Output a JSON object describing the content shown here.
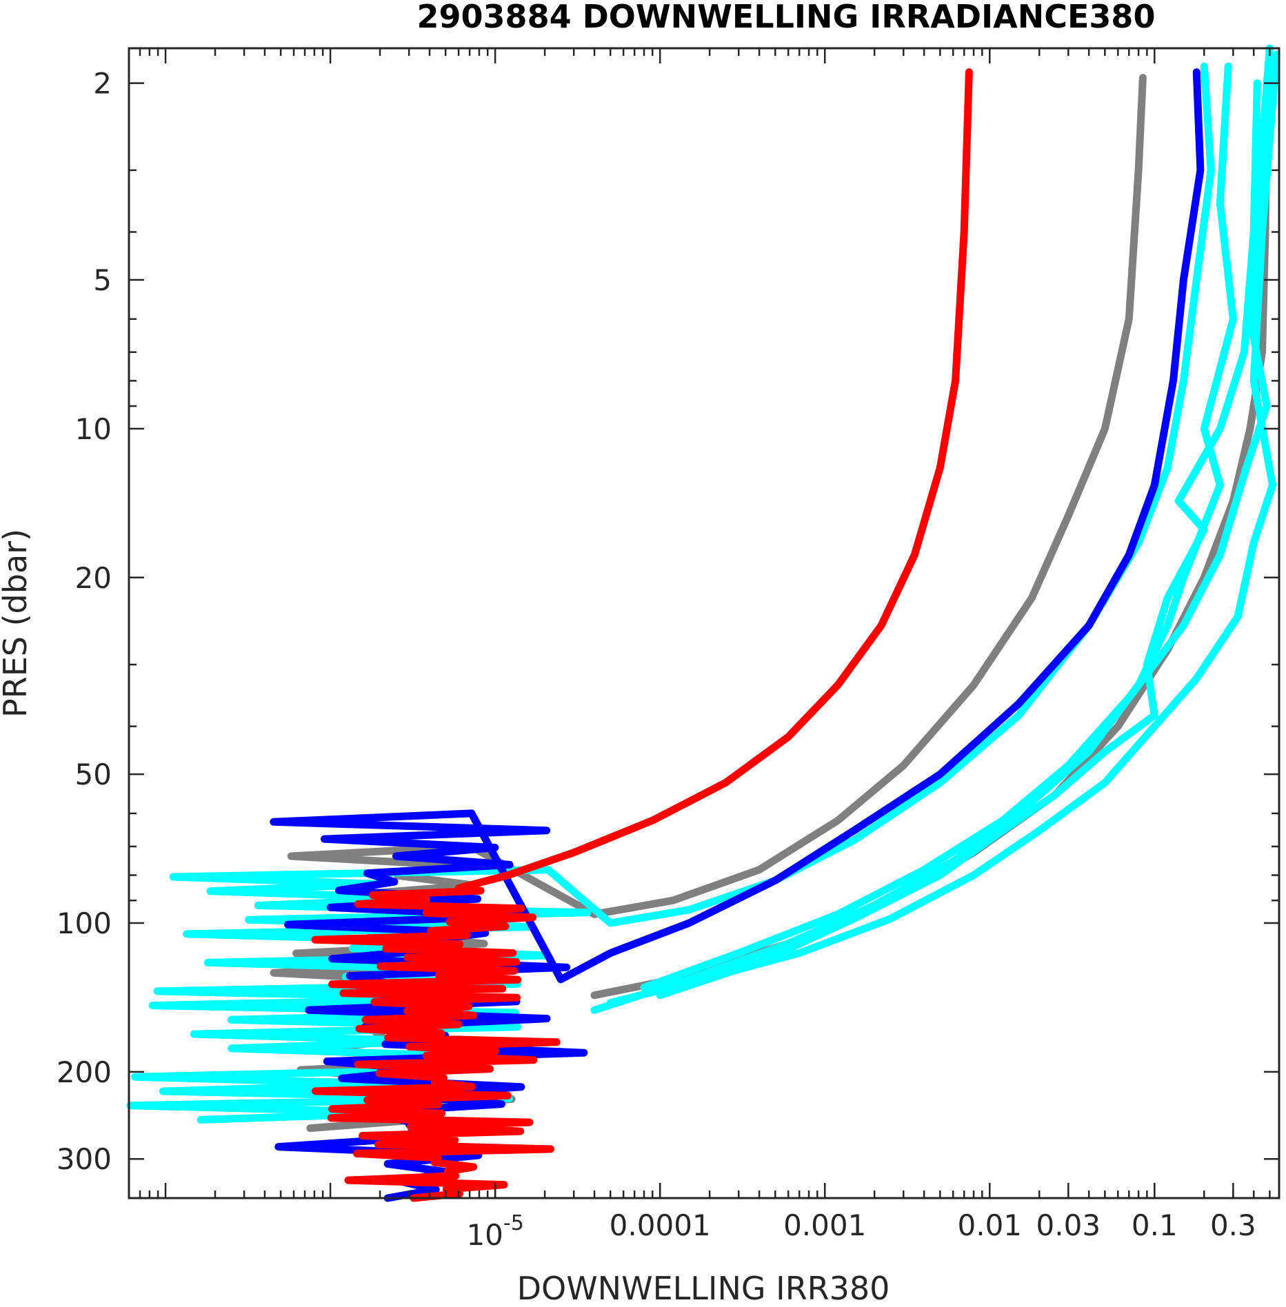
{
  "chart_data": {
    "type": "line",
    "title": "2903884  DOWNWELLING IRRADIANCE380",
    "xlabel": "DOWNWELLING IRR380",
    "ylabel": "PRES (dbar)",
    "x_scale": "log",
    "y_scale": "log",
    "y_inverted": true,
    "xlim": [
      6e-08,
      0.57
    ],
    "ylim": [
      1.7,
      360
    ],
    "grid": false,
    "x_ticks": [
      {
        "value": 1e-05,
        "label": "10",
        "exponent": "-5"
      },
      {
        "value": 0.0001,
        "label": "0.0001"
      },
      {
        "value": 0.001,
        "label": "0.001"
      },
      {
        "value": 0.01,
        "label": "0.01"
      },
      {
        "value": 0.03,
        "label": "0.03"
      },
      {
        "value": 0.1,
        "label": "0.1"
      },
      {
        "value": 0.3,
        "label": "0.3"
      }
    ],
    "y_ticks": [
      {
        "value": 2,
        "label": "2"
      },
      {
        "value": 5,
        "label": "5"
      },
      {
        "value": 10,
        "label": "10"
      },
      {
        "value": 20,
        "label": "20"
      },
      {
        "value": 50,
        "label": "50"
      },
      {
        "value": 100,
        "label": "100"
      },
      {
        "value": 200,
        "label": "200"
      },
      {
        "value": 300,
        "label": "300"
      }
    ],
    "series": [
      {
        "color": "#808080",
        "profile": [
          [
            0.085,
            1.95
          ],
          [
            0.08,
            3
          ],
          [
            0.07,
            6
          ],
          [
            0.05,
            10
          ],
          [
            0.03,
            15
          ],
          [
            0.018,
            22
          ],
          [
            0.008,
            33
          ],
          [
            0.003,
            48
          ],
          [
            0.0012,
            62
          ],
          [
            0.0004,
            78
          ],
          [
            0.00012,
            90
          ],
          [
            4e-05,
            96
          ]
        ],
        "noise": {
          "x_min": 3e-07,
          "x_max": 1.5e-05,
          "p_start": 70,
          "p_end": 260,
          "n": 30
        }
      },
      {
        "color": "#808080",
        "profile": [
          [
            0.48,
            2
          ],
          [
            0.47,
            4
          ],
          [
            0.45,
            7
          ],
          [
            0.38,
            10
          ],
          [
            0.3,
            14
          ],
          [
            0.2,
            20
          ],
          [
            0.12,
            28
          ],
          [
            0.06,
            40
          ],
          [
            0.025,
            55
          ],
          [
            0.008,
            72
          ],
          [
            0.0025,
            90
          ],
          [
            0.0006,
            110
          ],
          [
            0.00012,
            130
          ],
          [
            4e-05,
            140
          ]
        ],
        "noise": null
      },
      {
        "color": "#00ffff",
        "profile": [
          [
            0.2,
            1.85
          ],
          [
            0.22,
            3
          ],
          [
            0.18,
            5
          ],
          [
            0.15,
            8
          ],
          [
            0.12,
            12
          ],
          [
            0.08,
            17
          ],
          [
            0.04,
            25
          ],
          [
            0.015,
            38
          ],
          [
            0.005,
            52
          ],
          [
            0.0015,
            68
          ],
          [
            0.0005,
            82
          ],
          [
            0.00015,
            94
          ],
          [
            5e-05,
            100
          ]
        ],
        "noise": {
          "x_min": 6e-08,
          "x_max": 4e-05,
          "p_start": 78,
          "p_end": 250,
          "n": 36
        }
      },
      {
        "color": "#00ffff",
        "profile": [
          [
            0.28,
            1.85
          ],
          [
            0.25,
            3.5
          ],
          [
            0.3,
            6
          ],
          [
            0.2,
            10
          ],
          [
            0.25,
            13
          ],
          [
            0.15,
            20
          ],
          [
            0.12,
            25
          ],
          [
            0.08,
            33
          ],
          [
            0.04,
            45
          ],
          [
            0.015,
            60
          ],
          [
            0.006,
            75
          ],
          [
            0.002,
            92
          ],
          [
            0.0006,
            110
          ],
          [
            0.00015,
            130
          ],
          [
            4e-05,
            150
          ]
        ],
        "noise": null
      },
      {
        "color": "#00ffff",
        "profile": [
          [
            0.5,
            1.7
          ],
          [
            0.42,
            3.5
          ],
          [
            0.38,
            6
          ],
          [
            0.48,
            9
          ],
          [
            0.36,
            12
          ],
          [
            0.25,
            18
          ],
          [
            0.15,
            25
          ],
          [
            0.07,
            35
          ],
          [
            0.03,
            48
          ],
          [
            0.012,
            62
          ],
          [
            0.004,
            78
          ],
          [
            0.0012,
            96
          ],
          [
            0.0003,
            115
          ],
          [
            8e-05,
            135
          ]
        ],
        "noise": null
      },
      {
        "color": "#00ffff",
        "profile": [
          [
            0.42,
            2
          ],
          [
            0.4,
            4
          ],
          [
            0.35,
            7
          ],
          [
            0.25,
            10
          ],
          [
            0.14,
            14
          ],
          [
            0.2,
            16
          ],
          [
            0.12,
            22
          ],
          [
            0.09,
            30
          ],
          [
            0.1,
            38
          ],
          [
            0.05,
            45
          ],
          [
            0.025,
            55
          ],
          [
            0.012,
            65
          ],
          [
            0.005,
            80
          ],
          [
            0.0015,
            98
          ],
          [
            0.0004,
            120
          ],
          [
            0.0001,
            140
          ]
        ],
        "noise": null
      },
      {
        "color": "#00ffff",
        "profile": [
          [
            0.55,
            1.75
          ],
          [
            0.45,
            4
          ],
          [
            0.4,
            8
          ],
          [
            0.52,
            13
          ],
          [
            0.4,
            17
          ],
          [
            0.32,
            24
          ],
          [
            0.18,
            32
          ],
          [
            0.1,
            40
          ],
          [
            0.05,
            52
          ],
          [
            0.02,
            65
          ],
          [
            0.008,
            80
          ],
          [
            0.0025,
            98
          ],
          [
            0.0007,
            115
          ],
          [
            0.00015,
            132
          ],
          [
            5e-05,
            145
          ]
        ],
        "noise": null
      },
      {
        "color": "#0000ff",
        "profile": [
          [
            0.18,
            1.9
          ],
          [
            0.19,
            3
          ],
          [
            0.15,
            5
          ],
          [
            0.13,
            8
          ],
          [
            0.1,
            13
          ],
          [
            0.07,
            18
          ],
          [
            0.04,
            25
          ],
          [
            0.015,
            36
          ],
          [
            0.005,
            50
          ],
          [
            0.0015,
            65
          ],
          [
            0.0005,
            82
          ],
          [
            0.00015,
            100
          ],
          [
            5e-05,
            115
          ],
          [
            2.5e-05,
            130
          ]
        ],
        "noise": {
          "x_min": 2.5e-07,
          "x_max": 3.5e-05,
          "p_start": 60,
          "p_end": 360,
          "n": 46
        }
      },
      {
        "color": "#ff0000",
        "profile": [
          [
            0.0075,
            1.9
          ],
          [
            0.007,
            4
          ],
          [
            0.0062,
            8
          ],
          [
            0.005,
            12
          ],
          [
            0.0035,
            18
          ],
          [
            0.0022,
            25
          ],
          [
            0.0012,
            33
          ],
          [
            0.0006,
            42
          ],
          [
            0.00025,
            52
          ],
          [
            9e-05,
            62
          ],
          [
            3e-05,
            72
          ],
          [
            1.2e-05,
            80
          ],
          [
            6e-06,
            85
          ]
        ],
        "noise": {
          "x_min": 8e-07,
          "x_max": 2.5e-05,
          "p_start": 86,
          "p_end": 360,
          "n": 70
        }
      }
    ]
  }
}
